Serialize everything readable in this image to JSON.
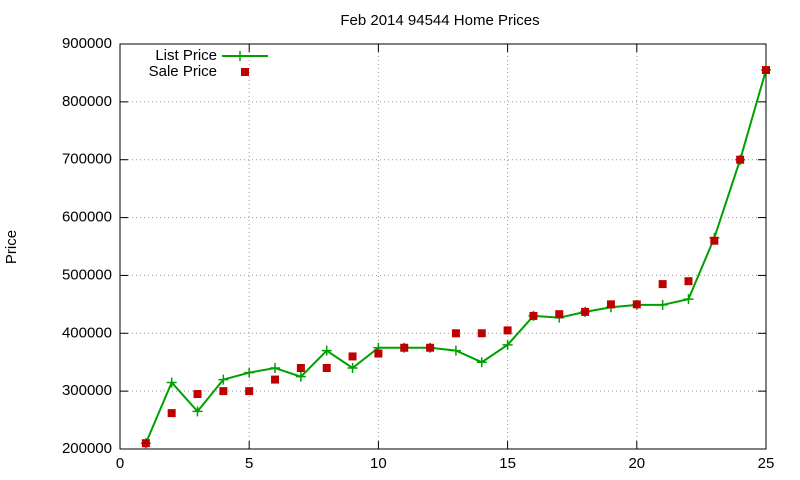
{
  "chart_data": {
    "type": "line",
    "title": "Feb 2014 94544 Home Prices",
    "y_label": "Price",
    "x": [
      1,
      2,
      3,
      4,
      5,
      6,
      7,
      8,
      9,
      10,
      11,
      12,
      13,
      14,
      15,
      16,
      17,
      18,
      19,
      20,
      21,
      22,
      23,
      24,
      25
    ],
    "series": [
      {
        "name": "List Price",
        "color": "#00a000",
        "style": "line-cross",
        "values": [
          210000,
          315000,
          265000,
          320000,
          332000,
          340000,
          325000,
          370000,
          340000,
          375000,
          375000,
          375000,
          370000,
          350000,
          380000,
          430000,
          427000,
          437000,
          445000,
          449000,
          449000,
          459000,
          565000,
          700000,
          855000
        ]
      },
      {
        "name": "Sale Price",
        "color": "#c00000",
        "style": "square",
        "values": [
          210000,
          262000,
          295000,
          300000,
          300000,
          320000,
          340000,
          340000,
          360000,
          365000,
          375000,
          375000,
          400000,
          400000,
          405000,
          430000,
          433000,
          437000,
          450000,
          450000,
          485000,
          490000,
          560000,
          700000,
          855000
        ]
      }
    ],
    "xlim": [
      0,
      25
    ],
    "xticks": [
      0,
      5,
      10,
      15,
      20,
      25
    ],
    "ylim": [
      200000,
      900000
    ],
    "yticks": [
      200000,
      300000,
      400000,
      500000,
      600000,
      700000,
      800000,
      900000
    ],
    "grid": true,
    "legend": "top-left"
  }
}
